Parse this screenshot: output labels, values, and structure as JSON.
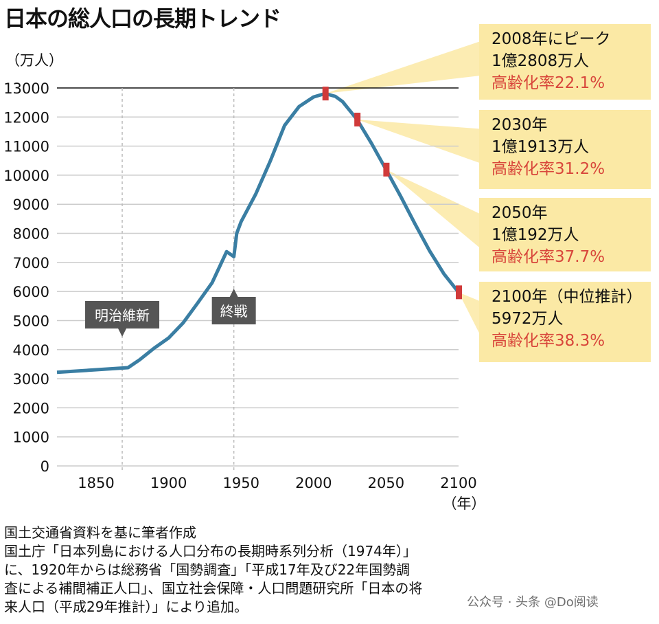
{
  "chart_data": {
    "type": "line",
    "title": "日本の総人口の長期トレンド",
    "ylabel": "（万人）",
    "xlabel": "（年）",
    "ylim": [
      0,
      13000
    ],
    "xlim": [
      1823,
      2100
    ],
    "yticks": [
      0,
      1000,
      2000,
      3000,
      4000,
      5000,
      6000,
      7000,
      8000,
      9000,
      10000,
      11000,
      12000,
      13000
    ],
    "xticks": [
      1850,
      1900,
      1950,
      2000,
      2050,
      2100
    ],
    "grid": true,
    "line_color": "#3a7ea3",
    "marker_color": "#d03a3a",
    "callout_color": "#fbe9a5",
    "series": [
      {
        "x": [
          1823,
          1872,
          1880,
          1890,
          1900,
          1910,
          1920,
          1930,
          1940,
          1945,
          1947,
          1950,
          1960,
          1970,
          1980,
          1990,
          2000,
          2008,
          2015,
          2020,
          2030,
          2040,
          2050,
          2060,
          2070,
          2080,
          2090,
          2100
        ],
        "values": [
          3220,
          3380,
          3650,
          4050,
          4400,
          4920,
          5600,
          6300,
          7370,
          7200,
          8000,
          8400,
          9340,
          10470,
          11710,
          12360,
          12690,
          12808,
          12710,
          12530,
          11913,
          11090,
          10192,
          9280,
          8320,
          7400,
          6600,
          5972
        ]
      }
    ],
    "markers": [
      {
        "x": 2008,
        "y": 12808
      },
      {
        "x": 2030,
        "y": 11913
      },
      {
        "x": 2050,
        "y": 10192
      },
      {
        "x": 2100,
        "y": 5972
      }
    ],
    "events": [
      {
        "x": 1868,
        "label": "明治維新",
        "pointer": "down"
      },
      {
        "x": 1945,
        "label": "終戦",
        "pointer": "up"
      }
    ],
    "callouts": [
      {
        "year": "2008年にピーク",
        "pop": "1億2808万人",
        "rate": "高齢化率22.1%"
      },
      {
        "year": "2030年",
        "pop": "1億1913万人",
        "rate": "高齢化率31.2%"
      },
      {
        "year": "2050年",
        "pop": "1億192万人",
        "rate": "高齢化率37.7%"
      },
      {
        "year": "2100年（中位推計）",
        "pop": "5972万人",
        "rate": "高齢化率38.3%"
      }
    ]
  },
  "notes": [
    "国土交通省資料を基に筆者作成",
    "国土庁「日本列島における人口分布の長期時系列分析（1974年）」",
    "に、1920年からは総務省「国勢調査」「平成17年及び22年国勢調",
    "査による補間補正人口」、国立社会保障・人口問題研究所「日本の将",
    "来人口（平成29年推計）」により追加。"
  ],
  "watermark": "公众号 · 头条 @Do阅读"
}
